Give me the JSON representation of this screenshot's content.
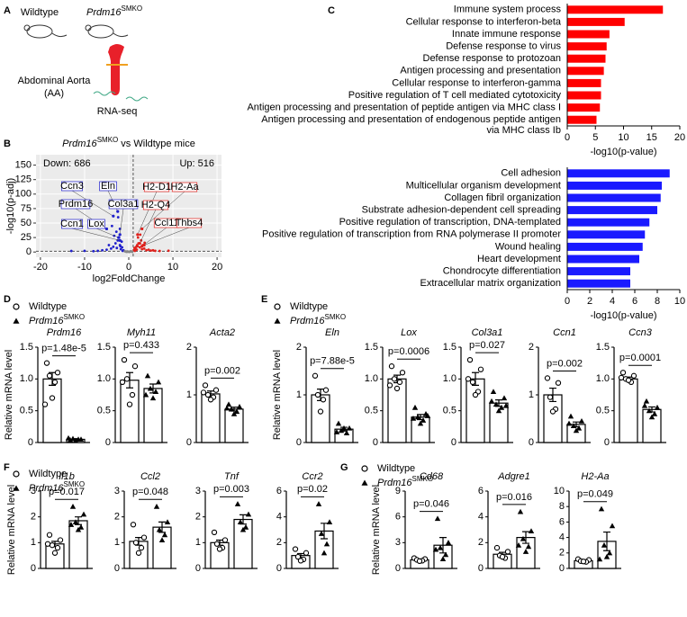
{
  "panel_labels": [
    "A",
    "B",
    "C",
    "D",
    "E",
    "F",
    "G"
  ],
  "schematic": {
    "wildtype": "Wildtype",
    "mutant": {
      "text": "Prdm16",
      "sup": "SMKO"
    },
    "tissue": [
      "Abdominal Aorta",
      "(AA)"
    ],
    "method": "RNA-seq"
  },
  "legend": {
    "control": "Wildtype",
    "mutant": {
      "text": "Prdm16",
      "sup": "SMKO"
    }
  },
  "chart_data": [
    {
      "type": "scatter",
      "title": [
        "Prdm16",
        "SMKO",
        " vs Wildtype mice"
      ],
      "xlabel": "log2FoldChange",
      "ylabel": "-log10(p-adj)",
      "xlim": [
        -21,
        21
      ],
      "xticks": [
        -20,
        -10,
        0,
        10,
        20
      ],
      "ylim": [
        -9,
        168
      ],
      "yticks": [
        0,
        25,
        50,
        75,
        100,
        125,
        150
      ],
      "annotations": [
        {
          "text": "Down: 686",
          "color": "#1f1fcc"
        },
        {
          "text": "Up: 516",
          "color": "#e0201b"
        }
      ],
      "vlines": [
        1
      ],
      "hlines": [
        1.3
      ],
      "background": "#ebebeb",
      "series": [
        {
          "color": "#1f1fcc",
          "x": [
            -1.2,
            -1.5,
            -2,
            -1.8,
            -2.5,
            -3,
            -2.2,
            -1.4,
            -3.5,
            -4,
            -5,
            -6,
            -7,
            -8,
            -10,
            -13,
            -2.8,
            -2,
            -3.3,
            -1.6,
            -4.5,
            -2.4,
            -3.8,
            -1.9,
            -2.7
          ],
          "y": [
            3,
            8,
            12,
            5,
            20,
            15,
            25,
            2,
            9,
            6,
            4,
            3,
            2,
            1.5,
            2,
            1.8,
            35,
            40,
            28,
            18,
            12,
            60,
            45,
            10,
            7
          ]
        },
        {
          "color": "#e0201b",
          "x": [
            1.2,
            1.5,
            2,
            1.8,
            2.5,
            3,
            2.2,
            1.4,
            3.5,
            4,
            5,
            6,
            2.8,
            3.2,
            1.7,
            4.5,
            2.1,
            3.6,
            1.3,
            5.5,
            7,
            9,
            2.6,
            1.9
          ],
          "y": [
            3,
            6,
            10,
            4,
            8,
            5,
            15,
            2,
            6,
            3,
            2.5,
            2,
            20,
            12,
            9,
            4,
            25,
            16,
            7,
            3,
            1.8,
            2.2,
            30,
            12
          ]
        },
        {
          "color": "#888888",
          "x": [
            0.2,
            -0.3,
            0.5,
            -0.6,
            0.8,
            -0.9,
            0.1,
            -0.2,
            0.4,
            -0.5
          ],
          "y": [
            0.5,
            1,
            1.5,
            0.8,
            0.3,
            1.2,
            0.2,
            0.6,
            1,
            0.4
          ]
        }
      ],
      "labels": [
        {
          "text": "Ccn3",
          "x": -3.5,
          "y": 62,
          "color": "#1f1fcc"
        },
        {
          "text": "Eln",
          "x": -2.5,
          "y": 70,
          "color": "#1f1fcc"
        },
        {
          "text": "Prdm16",
          "x": -5,
          "y": 40,
          "color": "#1f1fcc"
        },
        {
          "text": "Col3a1",
          "x": -2,
          "y": 30,
          "color": "#1f1fcc"
        },
        {
          "text": "Ccn1",
          "x": -2,
          "y": 20,
          "color": "#1f1fcc"
        },
        {
          "text": "Lox",
          "x": -2.3,
          "y": 25,
          "color": "#1f1fcc"
        },
        {
          "text": "H2-D1",
          "x": 2,
          "y": 30,
          "color": "#e0201b"
        },
        {
          "text": "H2-Aa",
          "x": 3,
          "y": 40,
          "color": "#e0201b"
        },
        {
          "text": "H2-Q4",
          "x": 2.5,
          "y": 15,
          "color": "#e0201b"
        },
        {
          "text": "Ccl11",
          "x": 3,
          "y": 10,
          "color": "#e0201b"
        },
        {
          "text": "Thbs4",
          "x": 3.5,
          "y": 12,
          "color": "#e0201b"
        }
      ]
    },
    {
      "type": "barh",
      "color": "#ff0000",
      "xlim": [
        0,
        20
      ],
      "xticks": [
        0,
        5,
        10,
        15,
        20
      ],
      "xlabel": "-log10(p-value)",
      "categories": [
        "Immune system process",
        "Cellular response to interferon-beta",
        "Innate immune response",
        "Defense response to virus",
        "Defense response to protozoan",
        "Antigen processing and presentation",
        "Cellular response to interferon-gamma",
        "Positive regulation of T cell mediated cytotoxicity",
        "Antigen processing and presentation of peptide antigen via MHC class I",
        [
          "Antigen processing and presentation of endogenous peptide antigen",
          "via MHC class Ib"
        ]
      ],
      "values": [
        17,
        10.2,
        7.5,
        7,
        6.8,
        6.5,
        6,
        6,
        5.8,
        5.2
      ]
    },
    {
      "type": "barh",
      "color": "#1a1aff",
      "xlim": [
        0,
        10
      ],
      "xticks": [
        0,
        2,
        4,
        6,
        8,
        10
      ],
      "xlabel": "-log10(p-value)",
      "categories": [
        "Cell adhesion",
        "Multicellular organism development",
        "Collagen fibril organization",
        "Substrate adhesion-dependent cell spreading",
        "Positive regulation of transcription, DNA-templated",
        "Positive regulation of transcription from RNA polymerase II promoter",
        "Wound healing",
        "Heart development",
        "Chondrocyte differentiation",
        "Extracellular matrix organization"
      ],
      "values": [
        9.1,
        8.4,
        8.3,
        8,
        7.3,
        6.9,
        6.7,
        6.4,
        5.6,
        5.6
      ]
    },
    {
      "type": "bar",
      "title": "Prdm16",
      "ylabel": "Relative mRNA level",
      "ylim": [
        0,
        1.5
      ],
      "yticks": [
        0,
        0.5,
        {
          "value": 1,
          "label": "1.0"
        },
        1.5
      ],
      "annotation": "p=1.48e-5",
      "series": [
        {
          "marker": "circle",
          "color": "#000000",
          "values": [
            1.25,
            1.1,
            1.05,
            0.95,
            0.7,
            0.6
          ],
          "mean": 1,
          "error": 0.1
        },
        {
          "marker": "triangle",
          "color": "#000000",
          "values": [
            0.04,
            0.05,
            0.06,
            0.05,
            0.03,
            0.07
          ],
          "mean": 0.05,
          "error": 0.01
        }
      ]
    },
    {
      "type": "bar",
      "title": "Myh11",
      "ylim": [
        0,
        1.5
      ],
      "yticks": [
        0,
        0.5,
        {
          "value": 1,
          "label": "1.0"
        },
        1.5
      ],
      "annotation": "p=0.433",
      "series": [
        {
          "marker": "circle",
          "color": "#000000",
          "values": [
            1.3,
            1.2,
            1,
            0.75,
            0.6,
            0.95
          ],
          "mean": 0.98,
          "error": 0.12
        },
        {
          "marker": "triangle",
          "color": "#000000",
          "values": [
            1.05,
            0.95,
            0.85,
            0.8,
            0.7,
            0.75
          ],
          "mean": 0.85,
          "error": 0.07
        }
      ]
    },
    {
      "type": "bar",
      "title": "Acta2",
      "ylim": [
        0,
        2
      ],
      "yticks": [
        0,
        1,
        2
      ],
      "annotation": "p=0.002",
      "series": [
        {
          "marker": "circle",
          "color": "#000000",
          "values": [
            1.2,
            1.1,
            1,
            0.95,
            0.9,
            1.05
          ],
          "mean": 1.02,
          "error": 0.06
        },
        {
          "marker": "triangle",
          "color": "#000000",
          "values": [
            0.8,
            0.75,
            0.7,
            0.65,
            0.6,
            0.72
          ],
          "mean": 0.7,
          "error": 0.04
        }
      ]
    },
    {
      "type": "bar",
      "title": "Eln",
      "ylabel": "Relative mRNA level",
      "ylim": [
        0,
        2
      ],
      "yticks": [
        0,
        1,
        2
      ],
      "annotation": "p=7.88e-5",
      "series": [
        {
          "marker": "circle",
          "color": "#000000",
          "values": [
            1.4,
            1.1,
            1,
            0.9,
            0.65
          ],
          "mean": 1,
          "error": 0.12
        },
        {
          "marker": "triangle",
          "color": "#000000",
          "values": [
            0.4,
            0.3,
            0.25,
            0.2,
            0.3,
            0.22
          ],
          "mean": 0.28,
          "error": 0.04
        }
      ]
    },
    {
      "type": "bar",
      "title": "Lox",
      "ylim": [
        0,
        1.5
      ],
      "yticks": [
        0,
        0.5,
        {
          "value": 1,
          "label": "1.0"
        },
        1.5
      ],
      "annotation": "p=0.0006",
      "series": [
        {
          "marker": "circle",
          "color": "#000000",
          "values": [
            1.2,
            1.1,
            1,
            0.95,
            0.85,
            0.9
          ],
          "mean": 1,
          "error": 0.06
        },
        {
          "marker": "triangle",
          "color": "#000000",
          "values": [
            0.55,
            0.45,
            0.4,
            0.35,
            0.3,
            0.38,
            0.42
          ],
          "mean": 0.4,
          "error": 0.04
        }
      ]
    },
    {
      "type": "bar",
      "title": "Col3a1",
      "ylim": [
        0,
        1.5
      ],
      "yticks": [
        0,
        0.5,
        {
          "value": 1,
          "label": "1.0"
        },
        1.5
      ],
      "annotation": "p=0.027",
      "series": [
        {
          "marker": "circle",
          "color": "#000000",
          "values": [
            1.3,
            1.15,
            0.95,
            0.8,
            0.75,
            1
          ],
          "mean": 1,
          "error": 0.1
        },
        {
          "marker": "triangle",
          "color": "#000000",
          "values": [
            0.8,
            0.7,
            0.6,
            0.55,
            0.5,
            0.65,
            0.58
          ],
          "mean": 0.62,
          "error": 0.05
        }
      ]
    },
    {
      "type": "bar",
      "title": "Ccn1",
      "ylim": [
        0,
        2
      ],
      "yticks": [
        0,
        1,
        2
      ],
      "annotation": "p=0.002",
      "series": [
        {
          "marker": "circle",
          "color": "#000000",
          "values": [
            1.35,
            1.25,
            0.95,
            0.7,
            0.65
          ],
          "mean": 1,
          "error": 0.14
        },
        {
          "marker": "triangle",
          "color": "#000000",
          "values": [
            0.55,
            0.45,
            0.35,
            0.3,
            0.25,
            0.4
          ],
          "mean": 0.38,
          "error": 0.05
        }
      ]
    },
    {
      "type": "bar",
      "title": "Ccn3",
      "ylim": [
        0,
        1.5
      ],
      "yticks": [
        0,
        0.5,
        {
          "value": 1,
          "label": "1.0"
        },
        1.5
      ],
      "annotation": "p=0.0001",
      "series": [
        {
          "marker": "circle",
          "color": "#000000",
          "values": [
            1.1,
            1.05,
            1,
            0.95,
            0.98,
            1.02
          ],
          "mean": 1,
          "error": 0.03
        },
        {
          "marker": "triangle",
          "color": "#000000",
          "values": [
            0.65,
            0.55,
            0.5,
            0.45,
            0.4,
            0.58
          ],
          "mean": 0.52,
          "error": 0.04
        }
      ]
    },
    {
      "type": "bar",
      "title": "Il1b",
      "ylabel": "Relative mRNA level",
      "ylim": [
        0,
        3
      ],
      "yticks": [
        0,
        1,
        2,
        3
      ],
      "annotation": "p=0.017",
      "series": [
        {
          "marker": "circle",
          "color": "#000000",
          "values": [
            1.3,
            1.1,
            0.9,
            0.8,
            0.6,
            0.95
          ],
          "mean": 0.95,
          "error": 0.1
        },
        {
          "marker": "triangle",
          "color": "#000000",
          "values": [
            2.4,
            2.1,
            1.8,
            1.6,
            1.5,
            1.7
          ],
          "mean": 1.85,
          "error": 0.15
        }
      ]
    },
    {
      "type": "bar",
      "title": "Ccl2",
      "ylim": [
        0,
        3
      ],
      "yticks": [
        0,
        1,
        2,
        3
      ],
      "annotation": "p=0.048",
      "series": [
        {
          "marker": "circle",
          "color": "#000000",
          "values": [
            1.7,
            1.2,
            1,
            0.8,
            0.6
          ],
          "mean": 1.05,
          "error": 0.15
        },
        {
          "marker": "triangle",
          "color": "#000000",
          "values": [
            2.4,
            1.8,
            1.5,
            1.3,
            1.1
          ],
          "mean": 1.6,
          "error": 0.2
        }
      ]
    },
    {
      "type": "bar",
      "title": "Tnf",
      "ylim": [
        0,
        3
      ],
      "yticks": [
        0,
        1,
        2,
        3
      ],
      "annotation": "p=0.003",
      "series": [
        {
          "marker": "circle",
          "color": "#000000",
          "values": [
            1.4,
            1.1,
            0.95,
            0.8,
            0.75
          ],
          "mean": 1,
          "error": 0.1
        },
        {
          "marker": "triangle",
          "color": "#000000",
          "values": [
            2.5,
            2.1,
            1.8,
            1.6,
            1.5
          ],
          "mean": 1.9,
          "error": 0.18
        }
      ]
    },
    {
      "type": "bar",
      "title": "Ccr2",
      "ylim": [
        0,
        6
      ],
      "yticks": [
        0,
        2,
        4,
        6
      ],
      "annotation": "p=0.02",
      "series": [
        {
          "marker": "circle",
          "color": "#000000",
          "values": [
            1.5,
            1.2,
            0.9,
            0.7,
            0.6
          ],
          "mean": 1,
          "error": 0.15
        },
        {
          "marker": "triangle",
          "color": "#000000",
          "values": [
            5,
            3.6,
            2.7,
            1.9,
            1.2
          ],
          "mean": 2.9,
          "error": 0.6
        }
      ]
    },
    {
      "type": "bar",
      "title": "Cd68",
      "ylabel": "Relative mRNA level",
      "ylim": [
        0,
        9
      ],
      "yticks": [
        0,
        3,
        6,
        9
      ],
      "annotation": "p=0.046",
      "series": [
        {
          "marker": "circle",
          "color": "#000000",
          "values": [
            1.2,
            1.1,
            1,
            0.9,
            0.85
          ],
          "mean": 1,
          "error": 0.08
        },
        {
          "marker": "triangle",
          "color": "#000000",
          "values": [
            5.8,
            3,
            2.4,
            1.6,
            1.1,
            2.2
          ],
          "mean": 2.7,
          "error": 0.9
        }
      ]
    },
    {
      "type": "bar",
      "title": "Adgre1",
      "ylim": [
        0,
        6
      ],
      "yticks": [
        0,
        2,
        4,
        6
      ],
      "annotation": "p=0.016",
      "series": [
        {
          "marker": "circle",
          "color": "#000000",
          "values": [
            1.6,
            1.3,
            1,
            0.8,
            0.9
          ],
          "mean": 1.1,
          "error": 0.15
        },
        {
          "marker": "triangle",
          "color": "#000000",
          "values": [
            4.4,
            2.9,
            2.3,
            1.7,
            1.3,
            1.8
          ],
          "mean": 2.4,
          "error": 0.45
        }
      ]
    },
    {
      "type": "bar",
      "title": "H2-Aa",
      "ylim": [
        0,
        10
      ],
      "yticks": [
        0,
        2,
        4,
        6,
        8,
        10
      ],
      "annotation": "p=0.049",
      "series": [
        {
          "marker": "circle",
          "color": "#000000",
          "values": [
            1.2,
            1.1,
            0.95,
            0.85,
            0.9
          ],
          "mean": 1,
          "error": 0.1
        },
        {
          "marker": "triangle",
          "color": "#000000",
          "values": [
            7.7,
            5.5,
            3,
            2,
            1.5,
            1.2
          ],
          "mean": 3.5,
          "error": 1.2
        }
      ]
    }
  ]
}
